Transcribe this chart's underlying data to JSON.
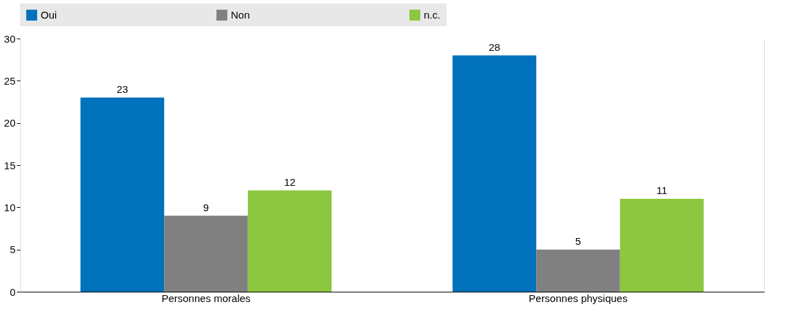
{
  "chart_data": {
    "type": "bar",
    "categories": [
      "Personnes morales",
      "Personnes physiques"
    ],
    "series": [
      {
        "name": "Oui",
        "color": "#0072bc",
        "values": [
          23,
          28
        ]
      },
      {
        "name": "Non",
        "color": "#808080",
        "values": [
          9,
          5
        ]
      },
      {
        "name": "n.c.",
        "color": "#8dc63f",
        "values": [
          12,
          11
        ]
      }
    ],
    "ylim": [
      0,
      30
    ],
    "yticks": [
      0,
      5,
      10,
      15,
      20,
      25,
      30
    ],
    "grid": "y",
    "legend": "top",
    "data_labels": true
  }
}
